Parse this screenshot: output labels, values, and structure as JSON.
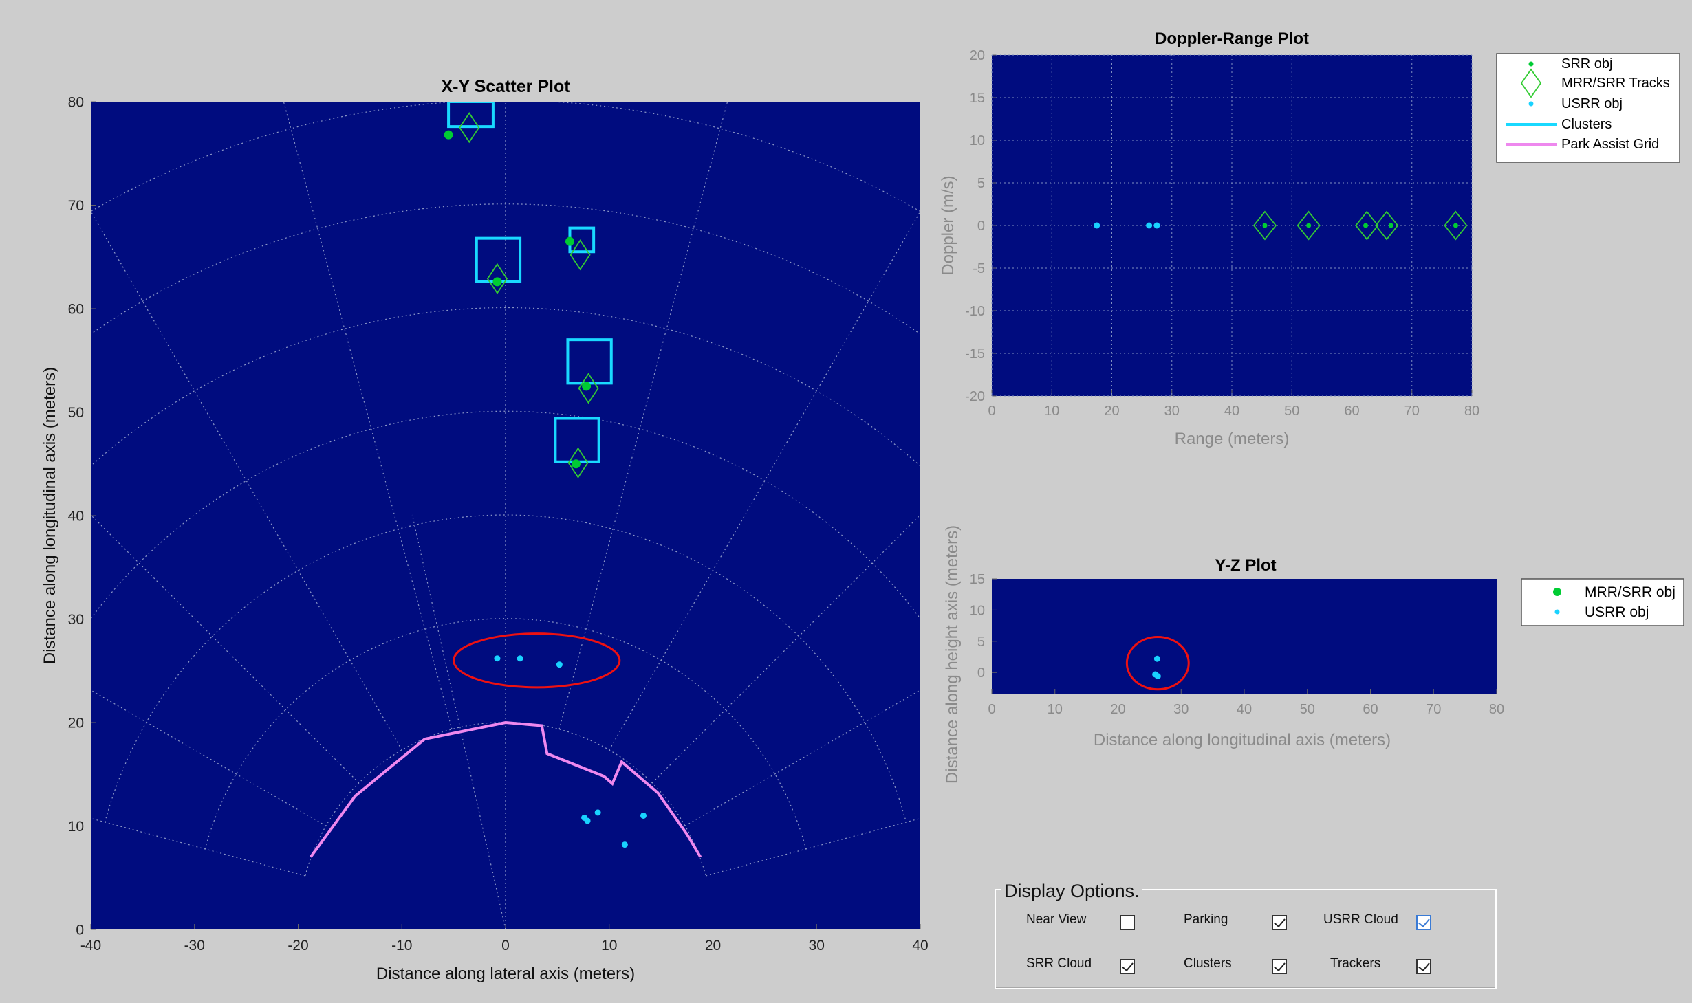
{
  "colors": {
    "figure_bg": "#cdcdcd",
    "axes_bg": "#000c7f",
    "srr": "#00cc33",
    "tracks": "#33cc33",
    "usrr": "#19d2ff",
    "clusters": "#19d9ff",
    "park_grid": "#ee88ee",
    "highlight": "#ee1111"
  },
  "chart_data": [
    {
      "id": "xy",
      "type": "scatter",
      "title": "X-Y Scatter Plot",
      "xlabel": "Distance along lateral axis (meters)",
      "ylabel": "Distance along longitudinal axis (meters)",
      "xlim": [
        -40,
        40
      ],
      "ylim": [
        0,
        80
      ],
      "xticks": [
        -40,
        -30,
        -20,
        -10,
        0,
        10,
        20,
        30,
        40
      ],
      "yticks": [
        0,
        10,
        20,
        30,
        40,
        50,
        60,
        70,
        80
      ],
      "grid": "polar",
      "srr_obj": [
        [
          -5.5,
          76.8
        ],
        [
          -0.8,
          62.6
        ],
        [
          6.2,
          66.5
        ],
        [
          7.8,
          52.5
        ],
        [
          6.8,
          45.0
        ]
      ],
      "tracks": [
        [
          -3.5,
          77.5
        ],
        [
          -0.8,
          62.9
        ],
        [
          7.2,
          65.2
        ],
        [
          8.0,
          52.3
        ],
        [
          7.0,
          45.1
        ]
      ],
      "usrr_obj": [
        [
          -0.8,
          26.2
        ],
        [
          1.4,
          26.2
        ],
        [
          5.2,
          25.6
        ],
        [
          7.6,
          10.8
        ],
        [
          7.9,
          10.5
        ],
        [
          8.9,
          11.3
        ],
        [
          13.3,
          11.0
        ],
        [
          11.5,
          8.2
        ]
      ],
      "clusters": [
        {
          "x": [
            -5.5,
            -1.2
          ],
          "y": [
            77.6,
            80.0
          ]
        },
        {
          "x": [
            -2.8,
            1.4
          ],
          "y": [
            62.6,
            66.8
          ]
        },
        {
          "x": [
            6.2,
            8.5
          ],
          "y": [
            65.5,
            67.8
          ]
        },
        {
          "x": [
            6.0,
            10.2
          ],
          "y": [
            52.8,
            57.0
          ]
        },
        {
          "x": [
            4.8,
            9.0
          ],
          "y": [
            45.2,
            49.4
          ]
        }
      ],
      "park_grid": [
        [
          -18.8,
          7.0
        ],
        [
          -14.5,
          12.9
        ],
        [
          -7.8,
          18.4
        ],
        [
          0,
          20.0
        ],
        [
          3.5,
          19.7
        ],
        [
          4.0,
          17.0
        ],
        [
          9.5,
          14.8
        ],
        [
          10.3,
          14.1
        ],
        [
          11.2,
          16.2
        ],
        [
          14.7,
          13.2
        ],
        [
          17.5,
          9.2
        ],
        [
          18.8,
          7.0
        ]
      ],
      "highlight": {
        "cx": 3.0,
        "cy": 26.0,
        "rx": 8.0,
        "ry": 2.6
      }
    },
    {
      "id": "doppler",
      "type": "scatter",
      "title": "Doppler-Range Plot",
      "xlabel": "Range (meters)",
      "ylabel": "Doppler (m/s)",
      "xlim": [
        0,
        80
      ],
      "ylim": [
        -20,
        20
      ],
      "xticks": [
        0,
        10,
        20,
        30,
        40,
        50,
        60,
        70,
        80
      ],
      "yticks": [
        -20,
        -15,
        -10,
        -5,
        0,
        5,
        10,
        15,
        20
      ],
      "grid": "on",
      "srr_obj": [
        [
          45.5,
          0
        ],
        [
          52.8,
          0
        ],
        [
          62.3,
          0
        ],
        [
          66.5,
          0
        ],
        [
          77.3,
          0
        ]
      ],
      "tracks": [
        [
          45.5,
          0
        ],
        [
          52.8,
          0
        ],
        [
          62.5,
          0
        ],
        [
          65.8,
          0
        ],
        [
          77.3,
          0
        ]
      ],
      "usrr_obj": [
        [
          17.5,
          0
        ],
        [
          26.2,
          0
        ],
        [
          27.5,
          0
        ]
      ],
      "legend": {
        "position": "top-right-outside",
        "entries": [
          "SRR obj",
          "MRR/SRR Tracks",
          "USRR obj",
          "Clusters",
          "Park Assist Grid"
        ]
      }
    },
    {
      "id": "yz",
      "type": "scatter",
      "title": "Y-Z Plot",
      "xlabel": "Distance along longitudinal axis (meters)",
      "ylabel": "Distance along height axis (meters)",
      "xlim": [
        0,
        80
      ],
      "ylim": [
        -3.5,
        15
      ],
      "xticks": [
        0,
        10,
        20,
        30,
        40,
        50,
        60,
        70,
        80
      ],
      "yticks": [
        0,
        5,
        10,
        15
      ],
      "usrr_obj": [
        [
          26.2,
          2.2
        ],
        [
          25.9,
          -0.3
        ],
        [
          26.3,
          -0.6
        ]
      ],
      "highlight": {
        "cx": 26.3,
        "cy": 1.5,
        "rx": 4.9,
        "ry": 4.2
      },
      "legend": {
        "position": "right-outside",
        "entries": [
          "MRR/SRR obj",
          "USRR obj"
        ]
      }
    }
  ],
  "display_options": {
    "title": "Display Options.",
    "items": [
      {
        "label": "Near View",
        "checked": false,
        "focus": false
      },
      {
        "label": "Parking",
        "checked": true,
        "focus": false
      },
      {
        "label": "USRR Cloud",
        "checked": true,
        "focus": true
      },
      {
        "label": "SRR Cloud",
        "checked": true,
        "focus": false
      },
      {
        "label": "Clusters",
        "checked": true,
        "focus": false
      },
      {
        "label": "Trackers",
        "checked": true,
        "focus": false
      }
    ]
  }
}
